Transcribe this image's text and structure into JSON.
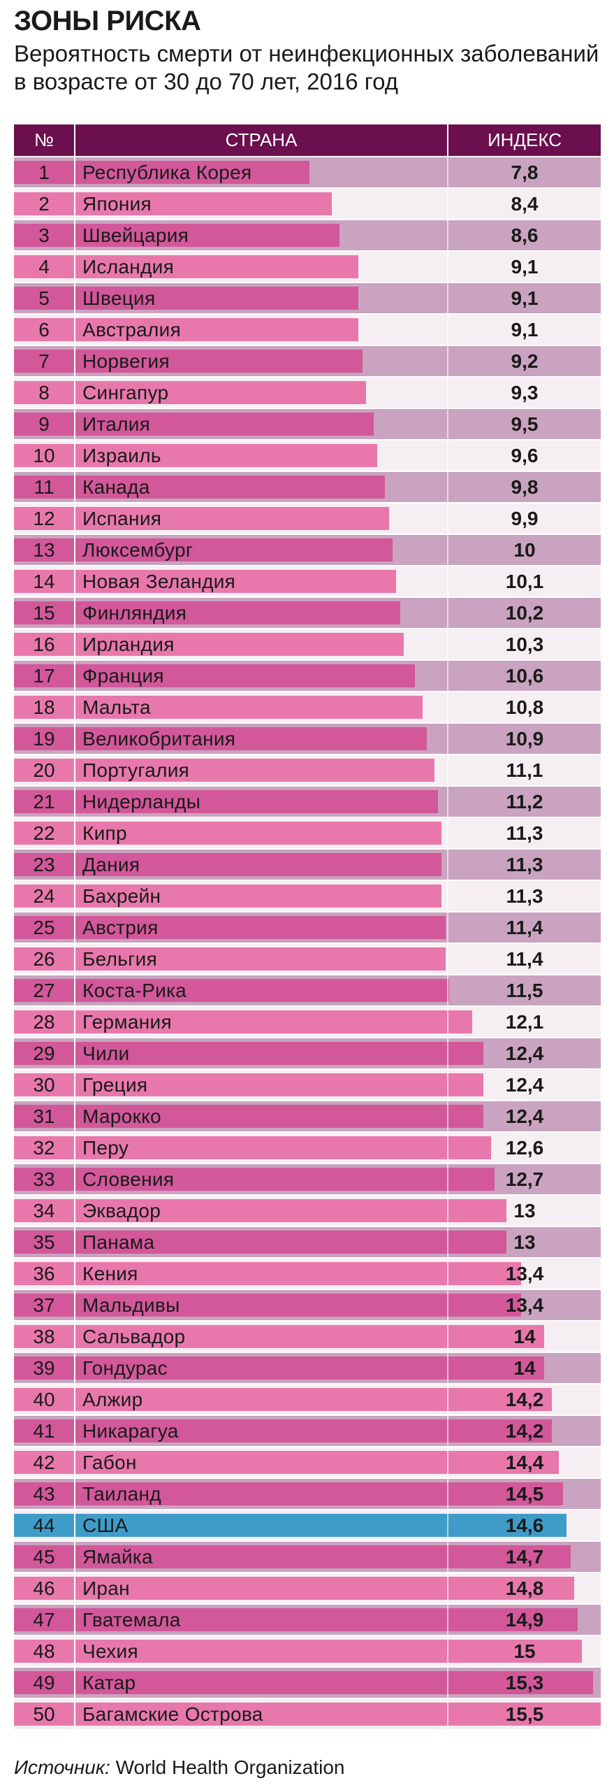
{
  "title": "ЗОНЫ РИСКА",
  "subtitle": "Вероятность смерти от неинфекционных заболеваний в возрасте от 30 до 70 лет, 2016 год",
  "colors": {
    "header_bg": "#6b0f4e",
    "bar_light": "#e878ac",
    "bar_dark": "#d2589a",
    "row_light_bg": "#f5eff3",
    "row_dark_bg": "#c9a3bf",
    "highlight_bar": "#3f9cc8"
  },
  "source": {
    "label": "Источник:",
    "text": "World Health Organization"
  },
  "chart_data": {
    "type": "bar",
    "orientation": "horizontal",
    "columns": [
      "№",
      "СТРАНА",
      "ИНДЕКС"
    ],
    "xlim": [
      0,
      15.5
    ],
    "highlight": "США",
    "rows": [
      {
        "rank": "1",
        "country": "Республика Корея",
        "value": 7.8,
        "label": "7,8"
      },
      {
        "rank": "2",
        "country": "Япония",
        "value": 8.4,
        "label": "8,4"
      },
      {
        "rank": "3",
        "country": "Швейцария",
        "value": 8.6,
        "label": "8,6"
      },
      {
        "rank": "4",
        "country": "Исландия",
        "value": 9.1,
        "label": "9,1"
      },
      {
        "rank": "5",
        "country": "Швеция",
        "value": 9.1,
        "label": "9,1"
      },
      {
        "rank": "6",
        "country": "Австралия",
        "value": 9.1,
        "label": "9,1"
      },
      {
        "rank": "7",
        "country": "Норвегия",
        "value": 9.2,
        "label": "9,2"
      },
      {
        "rank": "8",
        "country": "Сингапур",
        "value": 9.3,
        "label": "9,3"
      },
      {
        "rank": "9",
        "country": "Италия",
        "value": 9.5,
        "label": "9,5"
      },
      {
        "rank": "10",
        "country": "Израиль",
        "value": 9.6,
        "label": "9,6"
      },
      {
        "rank": "11",
        "country": "Канада",
        "value": 9.8,
        "label": "9,8"
      },
      {
        "rank": "12",
        "country": "Испания",
        "value": 9.9,
        "label": "9,9"
      },
      {
        "rank": "13",
        "country": "Люксембург",
        "value": 10,
        "label": "10"
      },
      {
        "rank": "14",
        "country": "Новая Зеландия",
        "value": 10.1,
        "label": "10,1"
      },
      {
        "rank": "15",
        "country": "Финляндия",
        "value": 10.2,
        "label": "10,2"
      },
      {
        "rank": "16",
        "country": "Ирландия",
        "value": 10.3,
        "label": "10,3"
      },
      {
        "rank": "17",
        "country": "Франция",
        "value": 10.6,
        "label": "10,6"
      },
      {
        "rank": "18",
        "country": "Мальта",
        "value": 10.8,
        "label": "10,8"
      },
      {
        "rank": "19",
        "country": "Великобритания",
        "value": 10.9,
        "label": "10,9"
      },
      {
        "rank": "20",
        "country": "Португалия",
        "value": 11.1,
        "label": "11,1"
      },
      {
        "rank": "21",
        "country": "Нидерланды",
        "value": 11.2,
        "label": "11,2"
      },
      {
        "rank": "22",
        "country": "Кипр",
        "value": 11.3,
        "label": "11,3"
      },
      {
        "rank": "23",
        "country": "Дания",
        "value": 11.3,
        "label": "11,3"
      },
      {
        "rank": "24",
        "country": "Бахрейн",
        "value": 11.3,
        "label": "11,3"
      },
      {
        "rank": "25",
        "country": "Австрия",
        "value": 11.4,
        "label": "11,4"
      },
      {
        "rank": "26",
        "country": "Бельгия",
        "value": 11.4,
        "label": "11,4"
      },
      {
        "rank": "27",
        "country": "Коста-Рика",
        "value": 11.5,
        "label": "11,5"
      },
      {
        "rank": "28",
        "country": "Германия",
        "value": 12.1,
        "label": "12,1"
      },
      {
        "rank": "29",
        "country": "Чили",
        "value": 12.4,
        "label": "12,4"
      },
      {
        "rank": "30",
        "country": "Греция",
        "value": 12.4,
        "label": "12,4"
      },
      {
        "rank": "31",
        "country": "Марокко",
        "value": 12.4,
        "label": "12,4"
      },
      {
        "rank": "32",
        "country": "Перу",
        "value": 12.6,
        "label": "12,6"
      },
      {
        "rank": "33",
        "country": "Словения",
        "value": 12.7,
        "label": "12,7"
      },
      {
        "rank": "34",
        "country": "Эквадор",
        "value": 13,
        "label": "13"
      },
      {
        "rank": "35",
        "country": "Панама",
        "value": 13,
        "label": "13"
      },
      {
        "rank": "36",
        "country": "Кения",
        "value": 13.4,
        "label": "13,4"
      },
      {
        "rank": "37",
        "country": "Мальдивы",
        "value": 13.4,
        "label": "13,4"
      },
      {
        "rank": "38",
        "country": "Сальвадор",
        "value": 14,
        "label": "14"
      },
      {
        "rank": "39",
        "country": "Гондурас",
        "value": 14,
        "label": "14"
      },
      {
        "rank": "40",
        "country": "Алжир",
        "value": 14.2,
        "label": "14,2"
      },
      {
        "rank": "41",
        "country": "Никарагуа",
        "value": 14.2,
        "label": "14,2"
      },
      {
        "rank": "42",
        "country": "Габон",
        "value": 14.4,
        "label": "14,4"
      },
      {
        "rank": "43",
        "country": "Таиланд",
        "value": 14.5,
        "label": "14,5"
      },
      {
        "rank": "44",
        "country": "США",
        "value": 14.6,
        "label": "14,6"
      },
      {
        "rank": "45",
        "country": "Ямайка",
        "value": 14.7,
        "label": "14,7"
      },
      {
        "rank": "46",
        "country": "Иран",
        "value": 14.8,
        "label": "14,8"
      },
      {
        "rank": "47",
        "country": "Гватемала",
        "value": 14.9,
        "label": "14,9"
      },
      {
        "rank": "48",
        "country": "Чехия",
        "value": 15,
        "label": "15"
      },
      {
        "rank": "49",
        "country": "Катар",
        "value": 15.3,
        "label": "15,3"
      },
      {
        "rank": "50",
        "country": "Багамские Острова",
        "value": 15.5,
        "label": "15,5"
      }
    ]
  }
}
